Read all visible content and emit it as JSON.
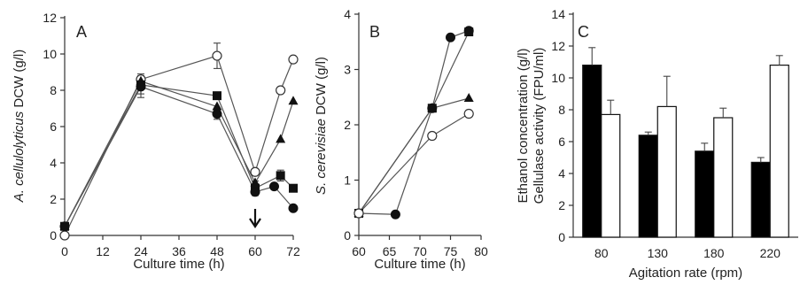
{
  "chart_data": [
    {
      "panel": "A",
      "type": "line",
      "xlabel": "Culture time (h)",
      "ylabel_italic": "A. cellulolyticus",
      "ylabel_rest": " DCW (g/l)",
      "xlim": [
        0,
        72
      ],
      "ylim": [
        0,
        12
      ],
      "xticks": [
        "0",
        "12",
        "24",
        "36",
        "48",
        "60",
        "72"
      ],
      "yticks": [
        "0",
        "2",
        "4",
        "6",
        "8",
        "10",
        "12"
      ],
      "arrow_at_x": 60,
      "series": [
        {
          "marker": "open-circle",
          "x": [
            0,
            24,
            48,
            60,
            68,
            72
          ],
          "y": [
            0.0,
            8.6,
            9.9,
            3.5,
            8.0,
            9.7
          ],
          "err": [
            0,
            0.3,
            0.7,
            0,
            0,
            0
          ]
        },
        {
          "marker": "square",
          "x": [
            0,
            24,
            48,
            60,
            68,
            72
          ],
          "y": [
            0.5,
            8.3,
            7.7,
            2.6,
            3.3,
            2.6
          ],
          "err": [
            0,
            0.5,
            0,
            0.4,
            0.3,
            0
          ]
        },
        {
          "marker": "triangle",
          "x": [
            0,
            24,
            48,
            60,
            68,
            72
          ],
          "y": [
            0.5,
            8.5,
            7.1,
            2.9,
            5.3,
            7.4
          ],
          "err": [
            0,
            0,
            0,
            0,
            0,
            0
          ]
        },
        {
          "marker": "circle",
          "x": [
            0,
            24,
            48,
            60,
            66,
            72
          ],
          "y": [
            0.5,
            8.2,
            6.7,
            2.4,
            2.7,
            1.5
          ],
          "err": [
            0,
            0.6,
            0.3,
            0,
            0,
            0
          ]
        }
      ]
    },
    {
      "panel": "B",
      "type": "line",
      "xlabel": "Culture time (h)",
      "ylabel_italic": "S. cerevisiae",
      "ylabel_rest": " DCW (g/l)",
      "xlim": [
        60,
        80
      ],
      "ylim": [
        0,
        4
      ],
      "xticks": [
        "60",
        "65",
        "70",
        "75",
        "80"
      ],
      "yticks": [
        "0",
        "1",
        "2",
        "3",
        "4"
      ],
      "series": [
        {
          "marker": "circle",
          "x": [
            60,
            66,
            72,
            75,
            78
          ],
          "y": [
            0.4,
            0.38,
            2.3,
            3.58,
            3.7
          ]
        },
        {
          "marker": "square",
          "x": [
            60,
            72,
            78
          ],
          "y": [
            0.4,
            2.3,
            3.68
          ]
        },
        {
          "marker": "triangle",
          "x": [
            60,
            72,
            78
          ],
          "y": [
            0.4,
            2.3,
            2.48
          ]
        },
        {
          "marker": "open-circle",
          "x": [
            60,
            72,
            78
          ],
          "y": [
            0.4,
            1.8,
            2.2
          ]
        }
      ]
    },
    {
      "panel": "C",
      "type": "bar",
      "xlabel": "Agitation rate (rpm)",
      "ylabel_line1": "Ethanol concentration (g/l)",
      "ylabel_line2": "Gellulase activity (FPU/ml)",
      "ylim": [
        0,
        14
      ],
      "yticks": [
        "0",
        "2",
        "4",
        "6",
        "8",
        "10",
        "12",
        "14"
      ],
      "categories": [
        "80",
        "130",
        "180",
        "220"
      ],
      "series": [
        {
          "fill": "black",
          "values": [
            10.8,
            6.4,
            5.4,
            4.7
          ],
          "err": [
            1.1,
            0.2,
            0.5,
            0.3
          ]
        },
        {
          "fill": "white",
          "values": [
            7.7,
            8.2,
            7.5,
            10.8
          ],
          "err": [
            0.9,
            1.9,
            0.6,
            0.6
          ]
        }
      ]
    }
  ]
}
